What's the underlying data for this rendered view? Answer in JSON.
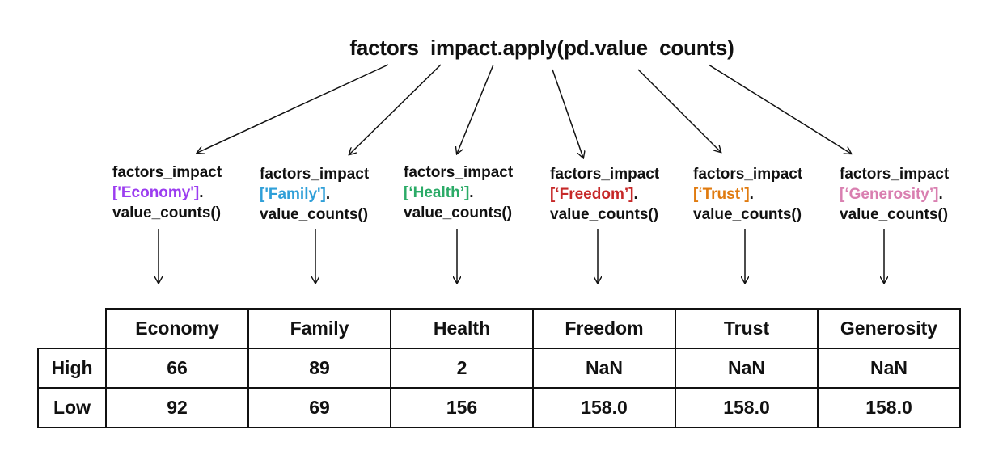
{
  "title": "factors_impact.apply(pd.value_counts)",
  "columns": [
    {
      "line1": "factors_impact",
      "key": "['Economy']",
      "dot": ".",
      "line3": "value_counts()",
      "color": "#9b3cf0"
    },
    {
      "line1": "factors_impact",
      "key": "['Family']",
      "dot": ".",
      "line3": "value_counts()",
      "color": "#2f9fd8"
    },
    {
      "line1": "factors_impact",
      "key": "[‘Health’]",
      "dot": ".",
      "line3": "value_counts()",
      "color": "#2bab67"
    },
    {
      "line1": "factors_impact",
      "key": "[‘Freedom’]",
      "dot": ".",
      "line3": "value_counts()",
      "color": "#c62828"
    },
    {
      "line1": "factors_impact",
      "key": "[‘Trust’]",
      "dot": ".",
      "line3": "value_counts()",
      "color": "#e07b10"
    },
    {
      "line1": "factors_impact",
      "key": "[‘Generosity’]",
      "dot": ".",
      "line3": "value_counts()",
      "color": "#d97fb0"
    }
  ],
  "table": {
    "headers": [
      "Economy",
      "Family",
      "Health",
      "Freedom",
      "Trust",
      "Generosity"
    ],
    "rows": [
      {
        "label": "High",
        "values": [
          "66",
          "89",
          "2",
          "NaN",
          "NaN",
          "NaN"
        ]
      },
      {
        "label": "Low",
        "values": [
          "92",
          "69",
          "156",
          "158.0",
          "158.0",
          "158.0"
        ]
      }
    ]
  }
}
